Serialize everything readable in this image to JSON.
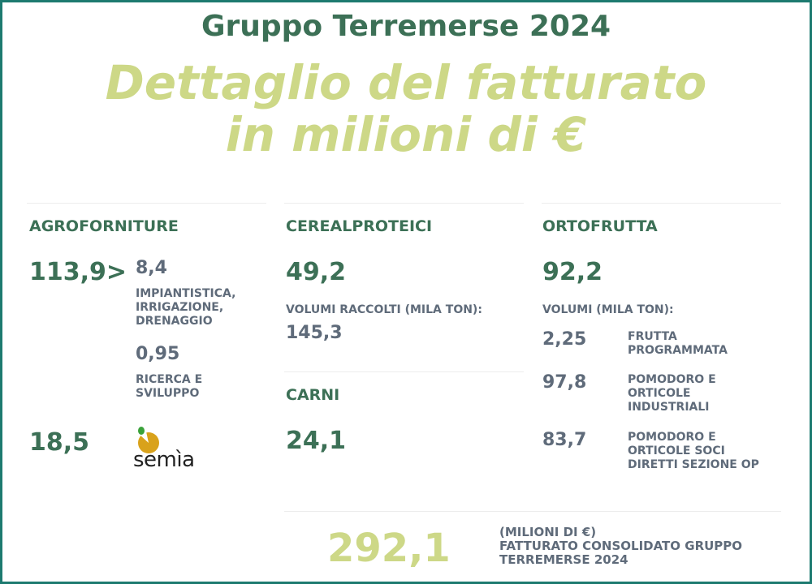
{
  "title": "Gruppo Terremerse 2024",
  "subtitle_line1": "Dettaglio del fatturato",
  "subtitle_line2": "in milioni di €",
  "agroforniture": {
    "heading": "AGROFORNITURE",
    "value": "113,9>",
    "sub1_value": "8,4",
    "sub1_label": [
      "IMPIANTISTICA,",
      "IRRIGAZIONE,",
      "DRENAGGIO"
    ],
    "sub2_value": "0,95",
    "sub2_label": [
      "RICERCA E",
      "SVILUPPO"
    ],
    "semia_value": "18,5",
    "semia_logo": "semìa"
  },
  "cerealproteici": {
    "heading": "CEREALPROTEICI",
    "value": "49,2",
    "volumes_label": "VOLUMI RACCOLTI (MILA TON):",
    "volumes_value": "145,3"
  },
  "carni": {
    "heading": "CARNI",
    "value": "24,1"
  },
  "ortofrutta": {
    "heading": "ORTOFRUTTA",
    "value": "92,2",
    "volumes_label": "VOLUMI (MILA TON):",
    "items": [
      {
        "value": "2,25",
        "label": [
          "FRUTTA",
          "PROGRAMMATA"
        ]
      },
      {
        "value": "97,8",
        "label": [
          "POMODORO E",
          "ORTICOLE",
          "INDUSTRIALI"
        ]
      },
      {
        "value": "83,7",
        "label": [
          "POMODORO E",
          "ORTICOLE SOCI",
          "DIRETTI SEZIONE OP"
        ]
      }
    ]
  },
  "total": {
    "value": "292,1",
    "label": [
      "(MILIONI DI €)",
      "FATTURATO CONSOLIDATO GRUPPO",
      "TERREMERSE 2024"
    ]
  },
  "colors": {
    "dark_green": "#3c7056",
    "light_green": "#cdd887",
    "gray": "#5f6b7a",
    "border": "#1d7a70"
  }
}
